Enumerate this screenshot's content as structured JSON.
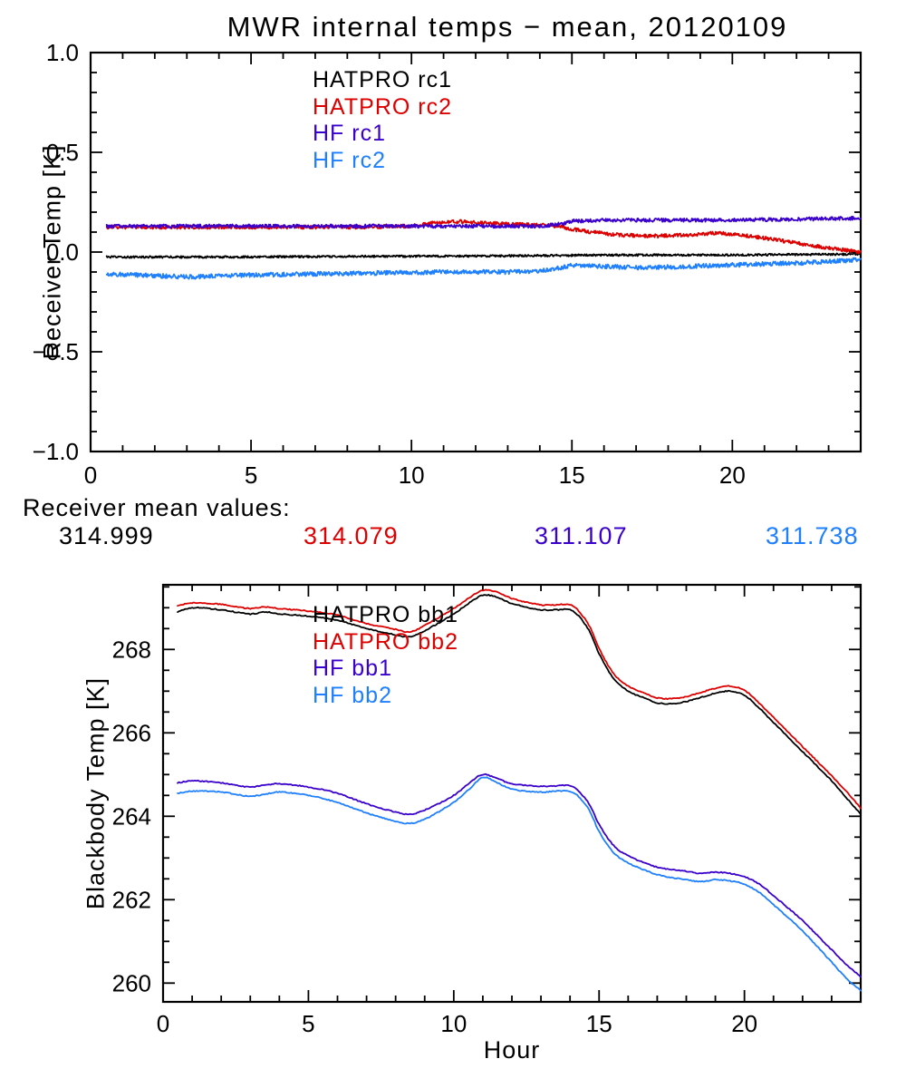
{
  "figure": {
    "title": "MWR internal temps − mean, 20120109",
    "background": "#ffffff"
  },
  "receiver_mean": {
    "label": "Receiver mean values:",
    "values": [
      {
        "text": "314.999",
        "color": "#000000"
      },
      {
        "text": "314.079",
        "color": "#dd0000"
      },
      {
        "text": "311.107",
        "color": "#3a00cc"
      },
      {
        "text": "311.738",
        "color": "#1e7fff"
      }
    ]
  },
  "chart_data": [
    {
      "type": "line",
      "title": "MWR internal temps − mean, 20120109",
      "ylabel": "Receiver Temp [K]",
      "xlabel": "",
      "xlim": [
        0,
        24
      ],
      "ylim": [
        -1.0,
        1.0
      ],
      "xticks": [
        0,
        5,
        10,
        15,
        20
      ],
      "yticks": [
        -1.0,
        -0.5,
        0.0,
        0.5,
        1.0
      ],
      "ytick_labels": [
        "−1.0",
        "−0.5",
        "0.0",
        "0.5",
        "1.0"
      ],
      "x_minor": 1,
      "y_minor": 0.1,
      "grid": false,
      "legend_position": "upper-left-inside",
      "legend": [
        {
          "label": "HATPRO rc1",
          "color": "#000000"
        },
        {
          "label": "HATPRO rc2",
          "color": "#dd0000"
        },
        {
          "label": "HF rc1",
          "color": "#3a00cc"
        },
        {
          "label": "HF rc2",
          "color": "#1e7fff"
        }
      ],
      "series": [
        {
          "name": "HATPRO rc1",
          "color": "#000000",
          "noise": 0.005,
          "smooth": false,
          "x": [
            0.5,
            4,
            8,
            12,
            14,
            16,
            20,
            24
          ],
          "y": [
            -0.025,
            -0.025,
            -0.022,
            -0.02,
            -0.018,
            -0.015,
            -0.015,
            -0.01
          ]
        },
        {
          "name": "HATPRO rc2",
          "color": "#dd0000",
          "noise": 0.009,
          "smooth": false,
          "x": [
            0.5,
            4,
            8,
            10,
            10.8,
            11.5,
            12.3,
            13,
            14,
            14.6,
            15,
            15.6,
            16.5,
            17.5,
            18.5,
            19,
            19.6,
            20.3,
            21,
            22,
            23,
            24
          ],
          "y": [
            0.125,
            0.125,
            0.125,
            0.13,
            0.148,
            0.153,
            0.145,
            0.14,
            0.135,
            0.13,
            0.115,
            0.1,
            0.085,
            0.08,
            0.085,
            0.09,
            0.095,
            0.085,
            0.07,
            0.045,
            0.02,
            0.0
          ]
        },
        {
          "name": "HF rc1",
          "color": "#3a00cc",
          "noise": 0.009,
          "smooth": false,
          "x": [
            0.5,
            5,
            10,
            14,
            14.6,
            15,
            16,
            18,
            20,
            22,
            24
          ],
          "y": [
            0.13,
            0.13,
            0.13,
            0.13,
            0.14,
            0.155,
            0.16,
            0.16,
            0.16,
            0.165,
            0.17
          ]
        },
        {
          "name": "HF rc2",
          "color": "#1e7fff",
          "noise": 0.011,
          "smooth": false,
          "x": [
            0.5,
            1.5,
            3,
            4,
            5,
            7,
            9,
            11,
            13,
            14,
            14.6,
            15,
            16,
            17,
            18,
            19,
            20,
            21,
            22,
            23,
            24
          ],
          "y": [
            -0.11,
            -0.115,
            -0.125,
            -0.12,
            -0.115,
            -0.11,
            -0.105,
            -0.1,
            -0.1,
            -0.095,
            -0.08,
            -0.065,
            -0.072,
            -0.078,
            -0.075,
            -0.07,
            -0.065,
            -0.06,
            -0.055,
            -0.048,
            -0.038
          ]
        }
      ]
    },
    {
      "type": "line",
      "title": "",
      "ylabel": "Blackbody Temp [K]",
      "xlabel": "Hour",
      "xlim": [
        0,
        24
      ],
      "ylim": [
        259.55,
        269.55
      ],
      "xticks": [
        0,
        5,
        10,
        15,
        20
      ],
      "yticks": [
        260,
        262,
        264,
        266,
        268
      ],
      "ytick_labels": [
        "260",
        "262",
        "264",
        "266",
        "268"
      ],
      "x_minor": 1,
      "y_minor": 0.5,
      "grid": false,
      "legend_position": "upper-left-inside",
      "legend": [
        {
          "label": "HATPRO bb1",
          "color": "#000000"
        },
        {
          "label": "HATPRO bb2",
          "color": "#dd0000"
        },
        {
          "label": "HF bb1",
          "color": "#3a00cc"
        },
        {
          "label": "HF bb2",
          "color": "#1e7fff"
        }
      ],
      "series": [
        {
          "name": "HATPRO bb1",
          "color": "#000000",
          "noise": 0.012,
          "smooth": true,
          "x": [
            0.5,
            1,
            2,
            3,
            3.5,
            4,
            5,
            6,
            7,
            8,
            8.5,
            9,
            10,
            10.5,
            11,
            11.5,
            12,
            13,
            13.5,
            14,
            14.3,
            14.7,
            15,
            15.5,
            16,
            16.5,
            17,
            17.5,
            18,
            18.5,
            19,
            19.5,
            20,
            20.5,
            21,
            21.5,
            22,
            22.5,
            23,
            23.5,
            24
          ],
          "y": [
            268.9,
            269.0,
            268.95,
            268.85,
            268.9,
            268.85,
            268.8,
            268.7,
            268.5,
            268.35,
            268.3,
            268.45,
            268.85,
            269.1,
            269.3,
            269.25,
            269.1,
            268.95,
            268.95,
            268.95,
            268.8,
            268.4,
            267.9,
            267.3,
            267.0,
            266.85,
            266.72,
            266.7,
            266.75,
            266.85,
            266.95,
            267.0,
            266.9,
            266.6,
            266.25,
            265.9,
            265.55,
            265.2,
            264.85,
            264.45,
            264.05
          ]
        },
        {
          "name": "HATPRO bb2",
          "color": "#dd0000",
          "noise": 0.012,
          "smooth": true,
          "x": [
            0.5,
            1,
            2,
            3,
            3.5,
            4,
            5,
            6,
            7,
            8,
            8.5,
            9,
            10,
            10.5,
            11,
            11.5,
            12,
            13,
            13.5,
            14,
            14.3,
            14.7,
            15,
            15.5,
            16,
            16.5,
            17,
            17.5,
            18,
            18.5,
            19,
            19.5,
            20,
            20.5,
            21,
            21.5,
            22,
            22.5,
            23,
            23.5,
            24
          ],
          "y": [
            269.05,
            269.12,
            269.08,
            268.98,
            269.02,
            268.98,
            268.92,
            268.82,
            268.62,
            268.48,
            268.42,
            268.58,
            268.98,
            269.22,
            269.42,
            269.37,
            269.22,
            269.07,
            269.07,
            269.07,
            268.92,
            268.52,
            268.02,
            267.42,
            267.12,
            266.97,
            266.84,
            266.82,
            266.87,
            266.97,
            267.07,
            267.12,
            267.02,
            266.72,
            266.37,
            266.02,
            265.67,
            265.32,
            264.97,
            264.6,
            264.2
          ]
        },
        {
          "name": "HF bb1",
          "color": "#3a00cc",
          "noise": 0.012,
          "smooth": true,
          "x": [
            0.5,
            1,
            2,
            3,
            3.5,
            4,
            5,
            6,
            7,
            8,
            8.5,
            9,
            10,
            10.5,
            11,
            11.5,
            12,
            13,
            13.5,
            14,
            14.3,
            14.7,
            15,
            15.5,
            16,
            16.5,
            17,
            17.5,
            18,
            18.5,
            19,
            19.5,
            20,
            20.5,
            21,
            21.5,
            22,
            22.5,
            23,
            23.5,
            24
          ],
          "y": [
            264.8,
            264.85,
            264.8,
            264.7,
            264.75,
            264.78,
            264.7,
            264.55,
            264.3,
            264.1,
            264.05,
            264.15,
            264.5,
            264.78,
            265.0,
            264.9,
            264.78,
            264.72,
            264.73,
            264.73,
            264.6,
            264.25,
            263.8,
            263.3,
            263.05,
            262.9,
            262.78,
            262.72,
            262.68,
            262.63,
            262.66,
            262.63,
            262.55,
            262.38,
            262.1,
            261.8,
            261.5,
            261.15,
            260.8,
            260.45,
            260.15
          ]
        },
        {
          "name": "HF bb2",
          "color": "#1e7fff",
          "noise": 0.012,
          "smooth": true,
          "x": [
            0.5,
            1,
            2,
            3,
            3.5,
            4,
            5,
            6,
            7,
            8,
            8.5,
            9,
            10,
            10.5,
            11,
            11.5,
            12,
            13,
            13.5,
            14,
            14.3,
            14.7,
            15,
            15.5,
            16,
            16.5,
            17,
            17.5,
            18,
            18.5,
            19,
            19.5,
            20,
            20.5,
            21,
            21.5,
            22,
            22.5,
            23,
            23.5,
            24
          ],
          "y": [
            264.55,
            264.6,
            264.58,
            264.48,
            264.53,
            264.58,
            264.5,
            264.33,
            264.08,
            263.88,
            263.83,
            263.93,
            264.33,
            264.63,
            264.93,
            264.8,
            264.65,
            264.58,
            264.6,
            264.6,
            264.47,
            264.1,
            263.63,
            263.13,
            262.88,
            262.73,
            262.6,
            262.53,
            262.48,
            262.43,
            262.48,
            262.45,
            262.37,
            262.18,
            261.88,
            261.57,
            261.25,
            260.88,
            260.5,
            260.12,
            259.82
          ]
        }
      ]
    }
  ]
}
